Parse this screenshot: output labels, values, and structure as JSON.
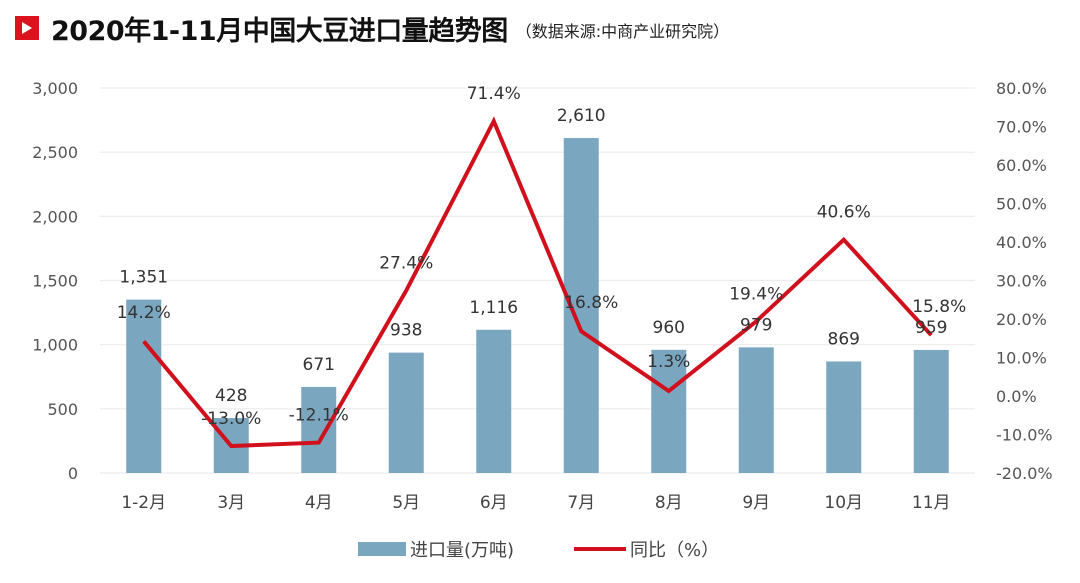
{
  "header": {
    "title": "2020年1-11月中国大豆进口量趋势图",
    "source": "（数据来源:中商产业研究院）",
    "icon": "play-icon",
    "icon_color": "#d9141e"
  },
  "colors": {
    "bar": "#7ba6c0",
    "line": "#d0101c",
    "grid": "#ececec",
    "text": "#555555"
  },
  "chart_data": {
    "type": "bar+line",
    "title": "2020年1-11月中国大豆进口量趋势图",
    "subtitle": "（数据来源:中商产业研究院）",
    "categories": [
      "1-2月",
      "3月",
      "4月",
      "5月",
      "6月",
      "7月",
      "8月",
      "9月",
      "10月",
      "11月"
    ],
    "series": [
      {
        "name": "进口量(万吨)",
        "type": "bar",
        "axis": "left",
        "values": [
          1351,
          428,
          671,
          938,
          1116,
          2610,
          960,
          979,
          869,
          959
        ],
        "labels": [
          "1,351",
          "428",
          "671",
          "938",
          "1,116",
          "2,610",
          "960",
          "979",
          "869",
          "959"
        ]
      },
      {
        "name": "同比（%）",
        "type": "line",
        "axis": "right",
        "values": [
          14.2,
          -13.0,
          -12.1,
          27.4,
          71.4,
          16.8,
          1.3,
          19.4,
          40.6,
          15.8
        ],
        "labels": [
          "14.2%",
          "-13.0%",
          "-12.1%",
          "27.4%",
          "71.4%",
          "16.8%",
          "1.3%",
          "19.4%",
          "40.6%",
          "15.8%"
        ]
      }
    ],
    "y_left": {
      "range": [
        0,
        3000
      ],
      "ticks": [
        "0",
        "500",
        "1,000",
        "1,500",
        "2,000",
        "2,500",
        "3,000"
      ]
    },
    "y_right": {
      "range": [
        -20,
        80
      ],
      "ticks": [
        "-20.0%",
        "-10.0%",
        "0.0%",
        "10.0%",
        "20.0%",
        "30.0%",
        "40.0%",
        "50.0%",
        "60.0%",
        "70.0%",
        "80.0%"
      ]
    },
    "xlabel": "",
    "ylabel": "",
    "grid": true,
    "legend_position": "bottom"
  },
  "legend": {
    "items": [
      {
        "label": "进口量(万吨)",
        "kind": "bar"
      },
      {
        "label": "同比（%）",
        "kind": "line"
      }
    ]
  }
}
